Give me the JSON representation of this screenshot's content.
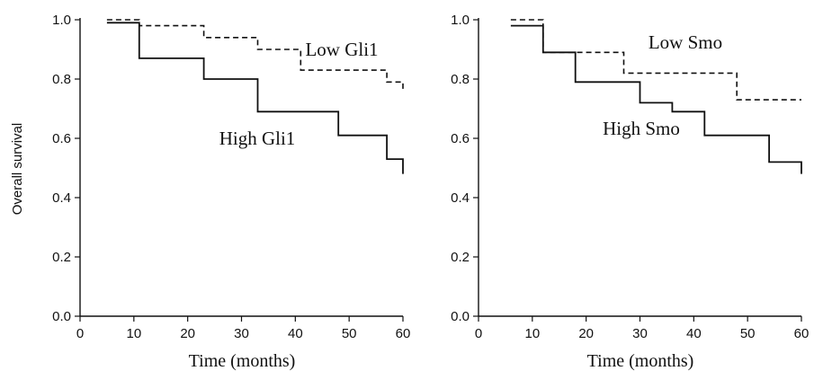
{
  "chart_data": [
    {
      "type": "line",
      "subtype": "step",
      "xlabel": "Time (months)",
      "ylabel": "Overall survival",
      "xlim": [
        0,
        60
      ],
      "ylim": [
        0,
        1.0
      ],
      "xticks": [
        "0",
        "10",
        "20",
        "30",
        "40",
        "50",
        "60"
      ],
      "yticks": [
        "0.0",
        "0.2",
        "0.4",
        "0.6",
        "0.8",
        "1.0"
      ],
      "grid": false,
      "series": [
        {
          "name": "Low Gli1",
          "style": "dashed",
          "x": [
            5,
            11,
            11,
            23,
            23,
            33,
            33,
            41,
            41,
            57,
            57,
            60,
            60
          ],
          "y": [
            1.0,
            1.0,
            0.98,
            0.98,
            0.94,
            0.94,
            0.9,
            0.9,
            0.83,
            0.83,
            0.79,
            0.79,
            0.76
          ]
        },
        {
          "name": "High Gli1",
          "style": "solid",
          "x": [
            5,
            11,
            11,
            23,
            23,
            33,
            33,
            48,
            48,
            57,
            57,
            60,
            60
          ],
          "y": [
            0.99,
            0.99,
            0.87,
            0.87,
            0.8,
            0.8,
            0.69,
            0.69,
            0.61,
            0.61,
            0.53,
            0.53,
            0.48
          ]
        }
      ]
    },
    {
      "type": "line",
      "subtype": "step",
      "xlabel": "Time (months)",
      "ylabel": "",
      "xlim": [
        0,
        60
      ],
      "ylim": [
        0,
        1.0
      ],
      "xticks": [
        "0",
        "10",
        "20",
        "30",
        "40",
        "50",
        "60"
      ],
      "yticks": [
        "0.0",
        "0.2",
        "0.4",
        "0.6",
        "0.8",
        "1.0"
      ],
      "grid": false,
      "series": [
        {
          "name": "Low Smo",
          "style": "dashed",
          "x": [
            6,
            12,
            12,
            27,
            27,
            48,
            48,
            60
          ],
          "y": [
            1.0,
            1.0,
            0.89,
            0.89,
            0.82,
            0.82,
            0.73,
            0.73
          ]
        },
        {
          "name": "High Smo",
          "style": "solid",
          "x": [
            6,
            12,
            12,
            18,
            18,
            30,
            30,
            36,
            36,
            42,
            42,
            54,
            54,
            60,
            60
          ],
          "y": [
            0.98,
            0.98,
            0.89,
            0.89,
            0.79,
            0.79,
            0.72,
            0.72,
            0.69,
            0.69,
            0.61,
            0.61,
            0.52,
            0.52,
            0.48
          ]
        }
      ]
    }
  ]
}
